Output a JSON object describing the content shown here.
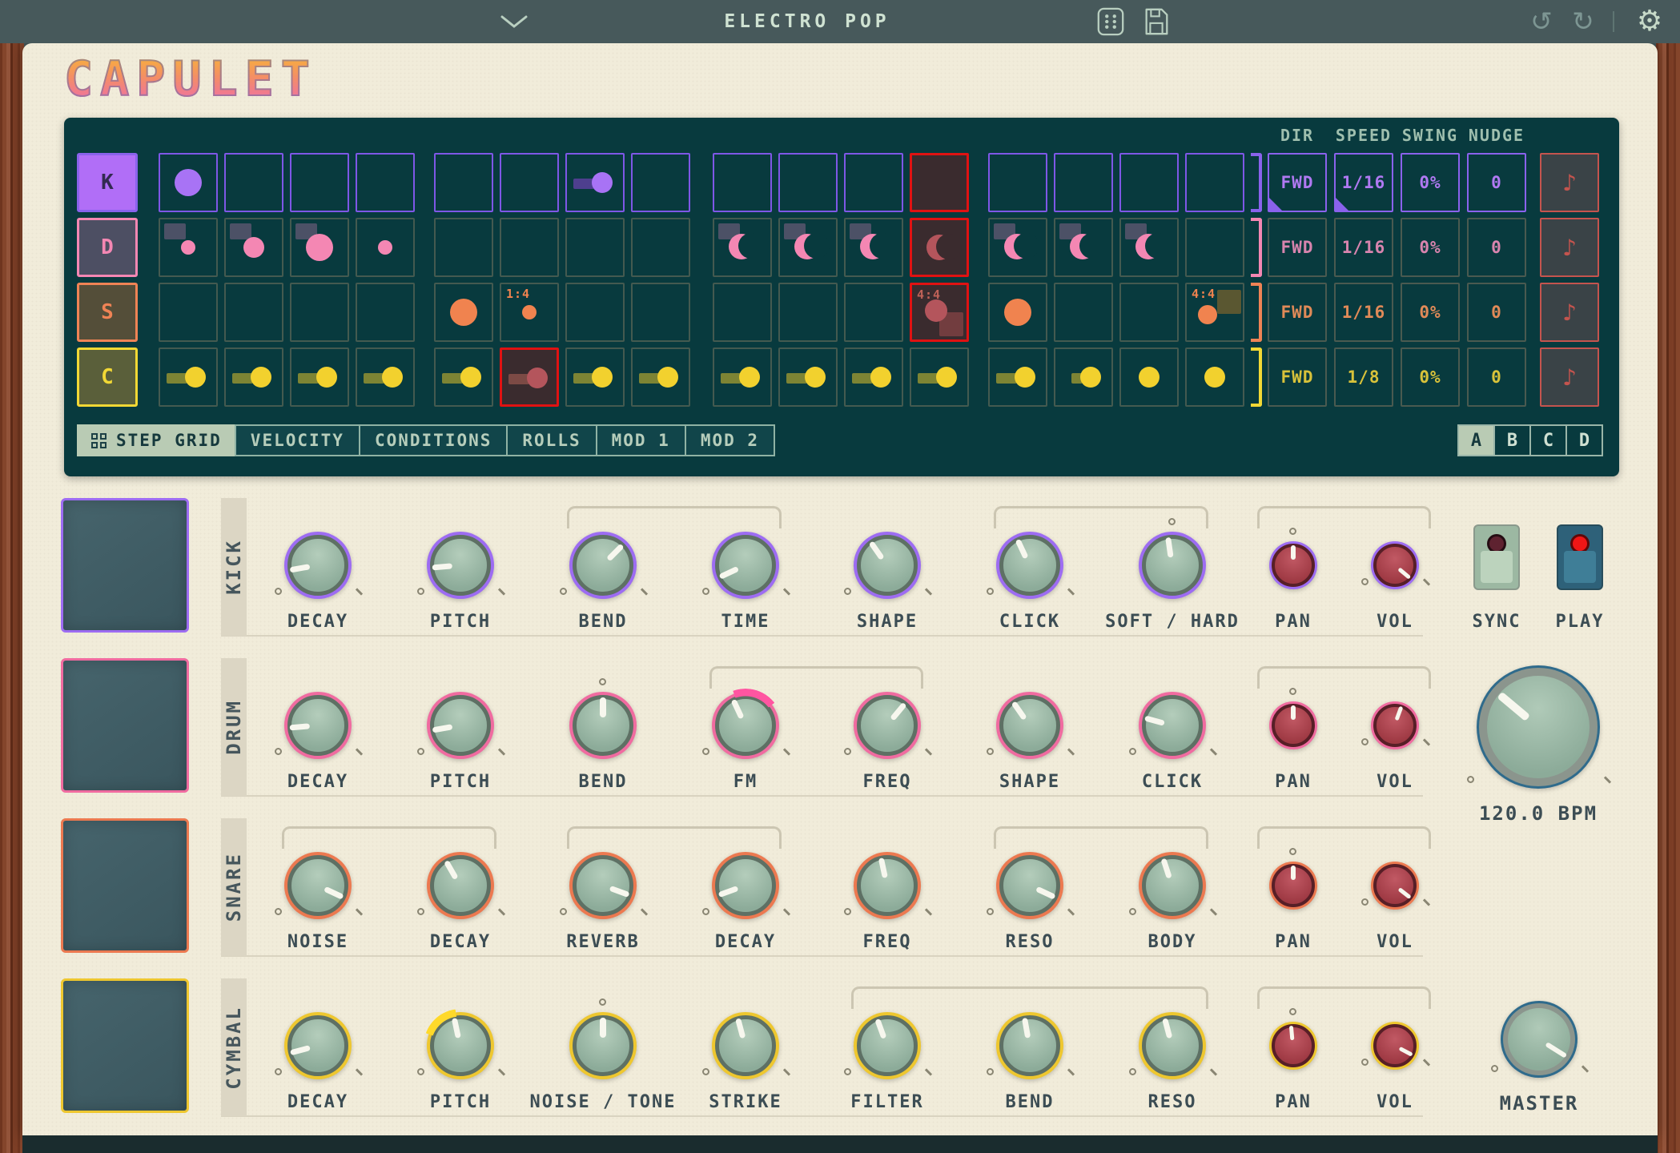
{
  "titlebar": {
    "title": "ELECTRO POP",
    "icons": [
      "preset-dropdown-chevron",
      "randomize-dice",
      "save",
      "undo",
      "redo",
      "settings-gear"
    ],
    "undo_glyph": "↺",
    "redo_glyph": "↻",
    "gear_glyph": "⚙"
  },
  "logo_text": "CAPULET",
  "colors": {
    "topbar_bg": "#47595b",
    "panel_bg": "#083a3e",
    "face_bg": "#f1ecda",
    "playhead_red": "#e01212",
    "muted_note": "#b4555c",
    "muted_bar": "#7c4a45",
    "kick_accent": "#9d6cf2",
    "drum_accent": "#f06ba0",
    "snare_accent": "#ec7950",
    "cymbal_accent": "#eec72f"
  },
  "sequencer": {
    "column_headers": [
      "DIR",
      "SPEED",
      "SWING",
      "NUDGE"
    ],
    "note_glyph": "♪",
    "tabs": [
      {
        "label": "STEP GRID",
        "active": true
      },
      {
        "label": "VELOCITY",
        "active": false
      },
      {
        "label": "CONDITIONS",
        "active": false
      },
      {
        "label": "ROLLS",
        "active": false
      },
      {
        "label": "MOD 1",
        "active": false
      },
      {
        "label": "MOD 2",
        "active": false
      }
    ],
    "patterns": [
      {
        "label": "A",
        "active": true
      },
      {
        "label": "B",
        "active": false
      },
      {
        "label": "C",
        "active": false
      },
      {
        "label": "D",
        "active": false
      }
    ],
    "rows": [
      {
        "id": "K",
        "note_color": "#a873f5",
        "bar_color": "#4e3f8e",
        "label_bg": "#b16ef7",
        "label_fg": "#332a52",
        "label_border": "#8a62ec",
        "cell_border": "#7e57e6",
        "settings_fg": "#b079f2",
        "settings_border": "#8a62ec",
        "corner_marks": [
          0,
          1
        ],
        "dir": "FWD",
        "speed": "1/16",
        "swing": "0%",
        "nudge": "0",
        "steps": [
          {
            "t": "dot",
            "s": "lg"
          },
          null,
          null,
          null,
          null,
          null,
          {
            "t": "dotbar",
            "s": "md"
          },
          null,
          null,
          null,
          null,
          {
            "play": true
          },
          null,
          null,
          null,
          null
        ]
      },
      {
        "id": "D",
        "note_color": "#f487b3",
        "bar_color": "#6d5570",
        "label_bg": "#4d4f63",
        "label_fg": "#f487b3",
        "label_border": "#f487b3",
        "cell_border": "#445a50",
        "settings_fg": "#d884ae",
        "settings_border": "#4a5a50",
        "corner_marks": [],
        "dir": "FWD",
        "speed": "1/16",
        "swing": "0%",
        "nudge": "0",
        "steps": [
          {
            "t": "dot",
            "s": "sm",
            "rect": true
          },
          {
            "t": "dot",
            "s": "md",
            "rect": true
          },
          {
            "t": "dot",
            "s": "lg",
            "rect": true
          },
          {
            "t": "dot",
            "s": "sm"
          },
          null,
          null,
          null,
          null,
          {
            "t": "cres",
            "rect": true
          },
          {
            "t": "cres",
            "rect": true
          },
          {
            "t": "cres",
            "rect": true
          },
          {
            "t": "cres",
            "play": true
          },
          {
            "t": "cres",
            "rect": true
          },
          {
            "t": "cres",
            "rect": true
          },
          {
            "t": "cres",
            "rect": true
          },
          null
        ]
      },
      {
        "id": "S",
        "note_color": "#f0834f",
        "bar_color": "#5c5530",
        "label_bg": "#544e39",
        "label_fg": "#ef8355",
        "label_border": "#ef8355",
        "cell_border": "#445a50",
        "settings_fg": "#e08a58",
        "settings_border": "#4a5a50",
        "corner_marks": [],
        "dir": "FWD",
        "speed": "1/16",
        "swing": "0%",
        "nudge": "0",
        "steps": [
          null,
          null,
          null,
          null,
          {
            "t": "dot",
            "s": "lg"
          },
          {
            "t": "dot",
            "s": "sm",
            "label": "1:4"
          },
          null,
          null,
          null,
          null,
          null,
          {
            "t": "roll",
            "label": "4:4",
            "play": true
          },
          {
            "t": "dot",
            "s": "lg"
          },
          null,
          null,
          {
            "t": "roll2",
            "label": "4:4"
          }
        ]
      },
      {
        "id": "C",
        "note_color": "#f2d12e",
        "bar_color": "#7d8434",
        "label_bg": "#5a5f3a",
        "label_fg": "#f2d835",
        "label_border": "#f2d835",
        "cell_border": "#445a50",
        "settings_fg": "#d8c23a",
        "settings_border": "#4a5a50",
        "corner_marks": [],
        "dir": "FWD",
        "speed": "1/8",
        "swing": "0%",
        "nudge": "0",
        "steps": [
          {
            "t": "dotbar",
            "s": "md"
          },
          {
            "t": "dotbar",
            "s": "md"
          },
          {
            "t": "dotbar",
            "s": "md"
          },
          {
            "t": "dotbar",
            "s": "md"
          },
          {
            "t": "dotbar",
            "s": "md"
          },
          {
            "t": "dotbar",
            "s": "md",
            "play": true
          },
          {
            "t": "dotbar",
            "s": "md"
          },
          {
            "t": "dotbar",
            "s": "md"
          },
          {
            "t": "dotbar",
            "s": "md"
          },
          {
            "t": "dotbar",
            "s": "md"
          },
          {
            "t": "dotbar",
            "s": "md"
          },
          {
            "t": "dotbar",
            "s": "md"
          },
          {
            "t": "dotbar",
            "s": "md"
          },
          {
            "t": "dotbar",
            "s": "md",
            "short": true
          },
          {
            "t": "dot",
            "s": "md"
          },
          {
            "t": "dot",
            "s": "md"
          }
        ]
      }
    ]
  },
  "instruments": [
    {
      "name": "KICK",
      "ring": "#9d6cf2",
      "knobs": [
        {
          "label": "DECAY",
          "angle": -100
        },
        {
          "label": "PITCH",
          "angle": -95
        },
        {
          "label": "BEND",
          "angle": 45
        },
        {
          "label": "TIME",
          "angle": -115
        },
        {
          "label": "SHAPE",
          "angle": -35
        },
        {
          "label": "CLICK",
          "angle": -25
        },
        {
          "label": "SOFT / HARD",
          "angle": -8,
          "top": true
        },
        {
          "label": "PAN",
          "angle": 0,
          "small": true,
          "top": true
        },
        {
          "label": "VOL",
          "angle": 130,
          "small": true
        }
      ],
      "brackets": [
        [
          2,
          3
        ],
        [
          5,
          6
        ],
        [
          7,
          8
        ]
      ],
      "extra": "buttons"
    },
    {
      "name": "DRUM",
      "ring": "#f06ba0",
      "knobs": [
        {
          "label": "DECAY",
          "angle": -95
        },
        {
          "label": "PITCH",
          "angle": -100
        },
        {
          "label": "BEND",
          "angle": 0,
          "top": true
        },
        {
          "label": "FM",
          "angle": -25,
          "arc": {
            "from": -20,
            "size": 72,
            "color": "#ff55a1"
          }
        },
        {
          "label": "FREQ",
          "angle": 40
        },
        {
          "label": "SHAPE",
          "angle": -35
        },
        {
          "label": "CLICK",
          "angle": -75
        },
        {
          "label": "PAN",
          "angle": 0,
          "small": true,
          "top": true
        },
        {
          "label": "VOL",
          "angle": 20,
          "small": true
        }
      ],
      "brackets": [
        [
          3,
          4
        ],
        [
          7,
          8
        ]
      ],
      "extra": "bpm"
    },
    {
      "name": "SNARE",
      "ring": "#ec7950",
      "knobs": [
        {
          "label": "NOISE",
          "angle": 115
        },
        {
          "label": "DECAY",
          "angle": -30
        },
        {
          "label": "REVERB",
          "angle": 110
        },
        {
          "label": "DECAY",
          "angle": -110
        },
        {
          "label": "FREQ",
          "angle": -12
        },
        {
          "label": "RESO",
          "angle": 115
        },
        {
          "label": "BODY",
          "angle": -18
        },
        {
          "label": "PAN",
          "angle": 0,
          "small": true,
          "top": true
        },
        {
          "label": "VOL",
          "angle": 128,
          "small": true
        }
      ],
      "brackets": [
        [
          0,
          1
        ],
        [
          2,
          3
        ],
        [
          5,
          6
        ],
        [
          7,
          8
        ]
      ],
      "extra": null
    },
    {
      "name": "CYMBAL",
      "ring": "#eec72f",
      "knobs": [
        {
          "label": "DECAY",
          "angle": -105
        },
        {
          "label": "PITCH",
          "angle": -12,
          "arc": {
            "from": -70,
            "size": 62,
            "color": "#ffd92a"
          }
        },
        {
          "label": "NOISE / TONE",
          "angle": 0,
          "top": true
        },
        {
          "label": "STRIKE",
          "angle": -15
        },
        {
          "label": "FILTER",
          "angle": -20
        },
        {
          "label": "BEND",
          "angle": -10
        },
        {
          "label": "RESO",
          "angle": -15
        },
        {
          "label": "PAN",
          "angle": -5,
          "small": true,
          "top": true
        },
        {
          "label": "VOL",
          "angle": 118,
          "small": true
        }
      ],
      "brackets": [
        [
          4,
          6
        ],
        [
          7,
          8
        ]
      ],
      "extra": "master"
    }
  ],
  "transport": {
    "sync_label": "SYNC",
    "play_label": "PLAY",
    "bpm_label": "120.0 BPM",
    "master_label": "MASTER"
  }
}
